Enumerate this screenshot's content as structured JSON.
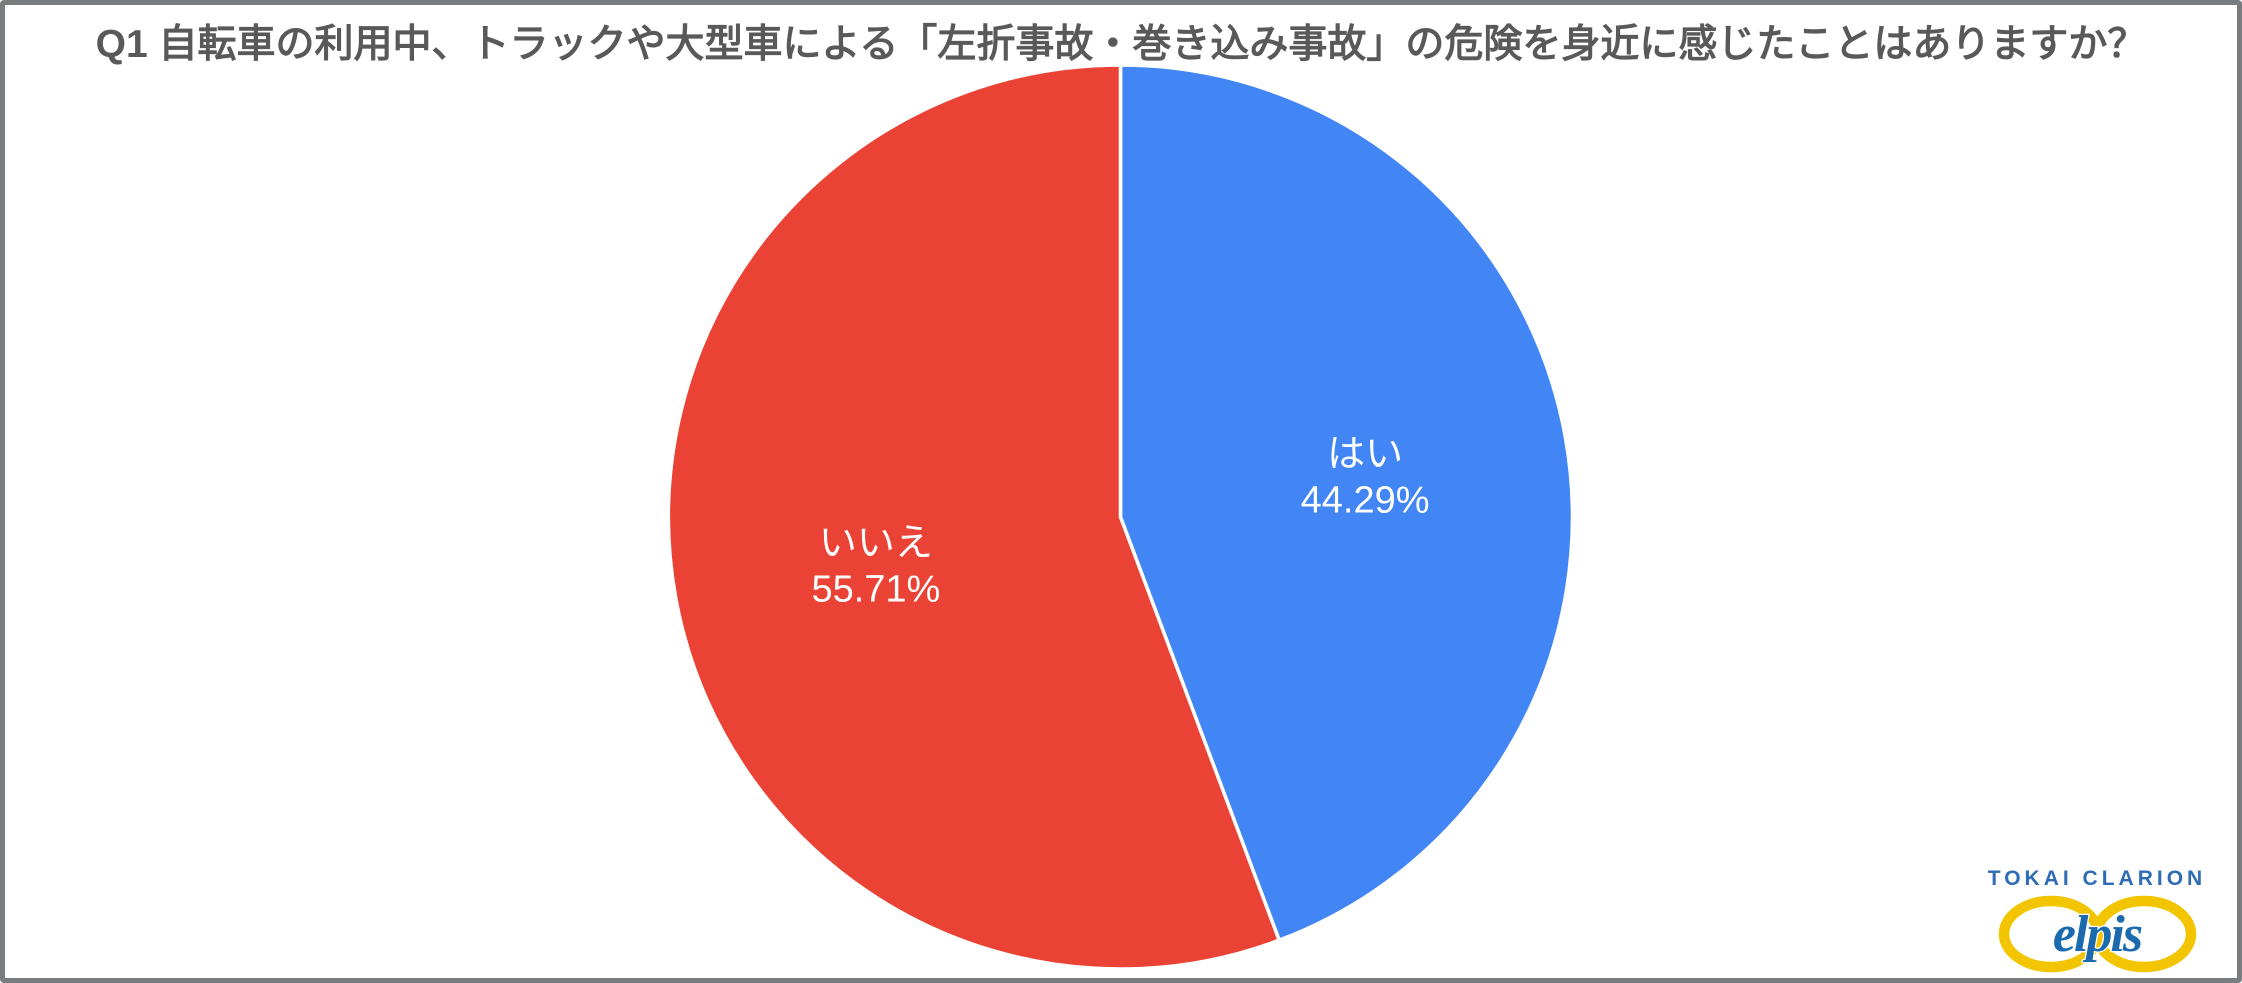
{
  "chart_data": {
    "type": "pie",
    "title": "Q1 自転車の利用中、トラックや大型車による「左折事故・巻き込み事故」の危険を身近に感じたことはありますか？",
    "categories": [
      "はい",
      "いいえ"
    ],
    "values": [
      44.29,
      55.71
    ],
    "value_labels": [
      "44.29%",
      "55.71%"
    ],
    "colors": [
      "#4285F4",
      "#EA4335"
    ],
    "slice_label_color": "#FFFFFF",
    "slice_border_color": "#FFFFFF",
    "start_angle_deg": 0,
    "direction": "clockwise",
    "legend": "none",
    "title_color": "#595959"
  },
  "branding": {
    "company": "TOKAI CLARION",
    "logo_text": "elpis",
    "company_color": "#2E6DB4",
    "ring_color": "#F2C500",
    "logo_text_color": "#1A6AAD"
  },
  "frame": {
    "border_color": "#797D80",
    "background": "#FFFFFF"
  }
}
